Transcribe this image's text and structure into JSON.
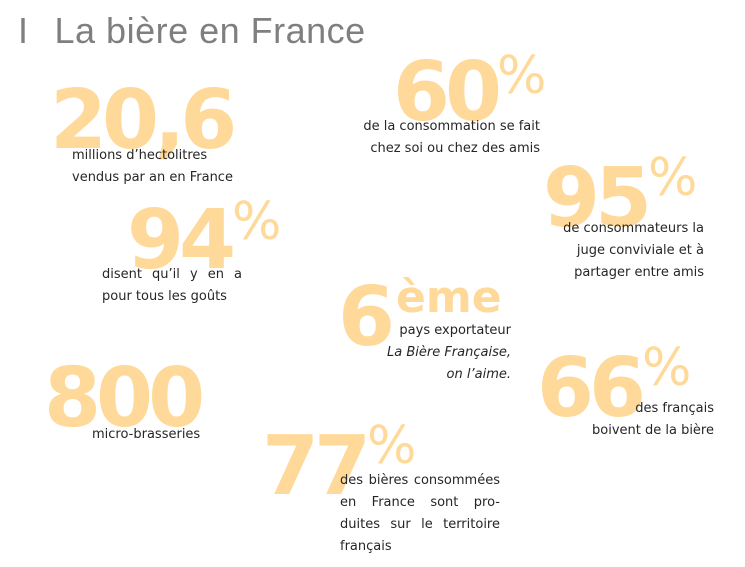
{
  "header": {
    "number": "I",
    "title": "La bière en France"
  },
  "accent_color": "#ffd99a",
  "stats": {
    "s206": {
      "value": "20,6",
      "lines": [
        "millions d’hectolitres",
        "vendus par an en France"
      ]
    },
    "s60": {
      "value": "60",
      "suffix": "%",
      "lines": [
        "de la consommation se fait",
        "chez soi ou chez des amis"
      ]
    },
    "s95": {
      "value": "95",
      "suffix": "%",
      "lines": [
        "de consommateurs la",
        "juge conviviale et à",
        "partager entre amis"
      ]
    },
    "s94": {
      "value": "94",
      "suffix": "%",
      "lines": [
        "disent qu’il y en a",
        "pour tous les goûts"
      ]
    },
    "s6": {
      "value": "6",
      "suffix": "ème",
      "lines": [
        "pays exportateur",
        "La Bière Française,",
        "on l’aime."
      ]
    },
    "s800": {
      "value": "800",
      "lines": [
        "micro-brasseries"
      ]
    },
    "s66": {
      "value": "66",
      "suffix": "%",
      "lines": [
        "des français",
        "boivent de la bière"
      ]
    },
    "s77": {
      "value": "77",
      "suffix": "%",
      "lines": [
        "des bières consommées",
        "en France sont pro-",
        "duites sur le territoire",
        "français"
      ]
    }
  }
}
